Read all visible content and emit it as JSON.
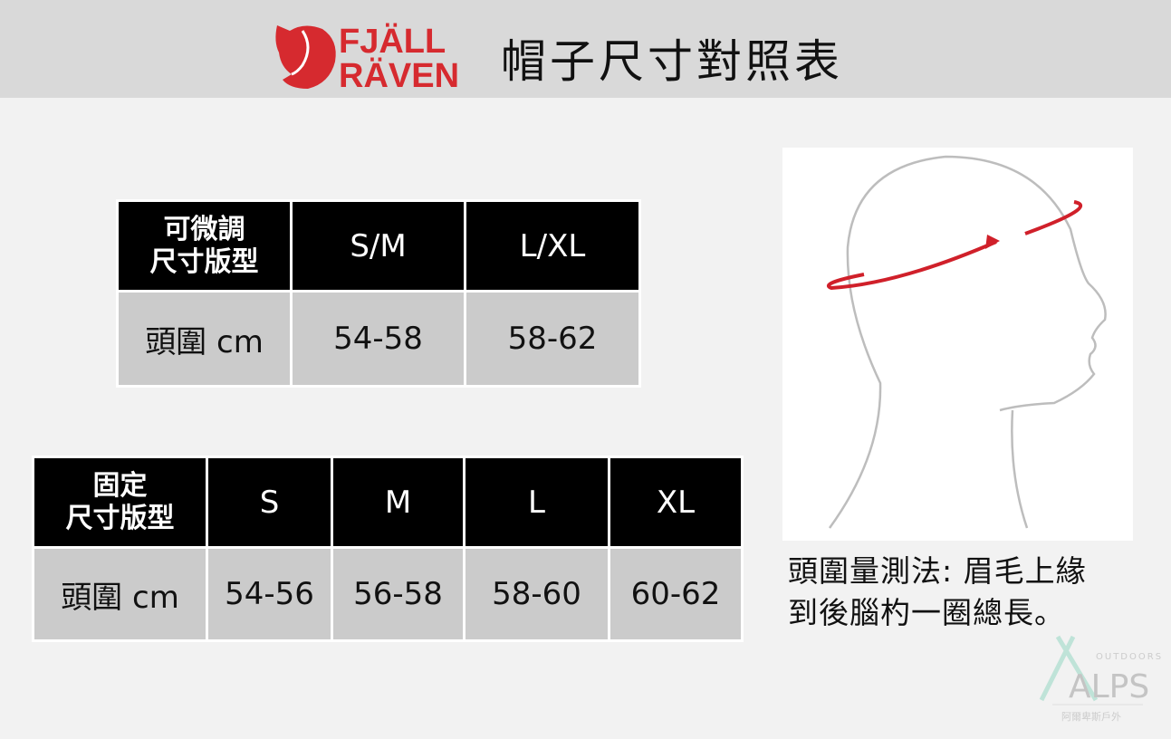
{
  "header": {
    "brand": "FJÄLLRÄVEN",
    "brand_line1": "FJÄLL",
    "brand_line2": "RÄVEN",
    "title": "帽子尺寸對照表",
    "brand_color": "#d62a2f"
  },
  "adjustable_table": {
    "header": [
      "可微調\n尺寸版型",
      "S/M",
      "L/XL"
    ],
    "header_label_line1": "可微調",
    "header_label_line2": "尺寸版型",
    "rows": [
      [
        "頭圍 cm",
        "54-58",
        "58-62"
      ]
    ]
  },
  "fixed_table": {
    "header": [
      "固定\n尺寸版型",
      "S",
      "M",
      "L",
      "XL"
    ],
    "header_label_line1": "固定",
    "header_label_line2": "尺寸版型",
    "rows": [
      [
        "頭圍 cm",
        "54-56",
        "56-58",
        "58-60",
        "60-62"
      ]
    ]
  },
  "measure": {
    "caption_line1": "頭圍量測法: 眉毛上緣",
    "caption_line2": "到後腦杓一圈總長。",
    "arrow_color": "#d0202a"
  },
  "watermark": {
    "line1": "OUTDOORS",
    "line2": "ALPS",
    "line3": "阿爾卑斯戶外"
  }
}
